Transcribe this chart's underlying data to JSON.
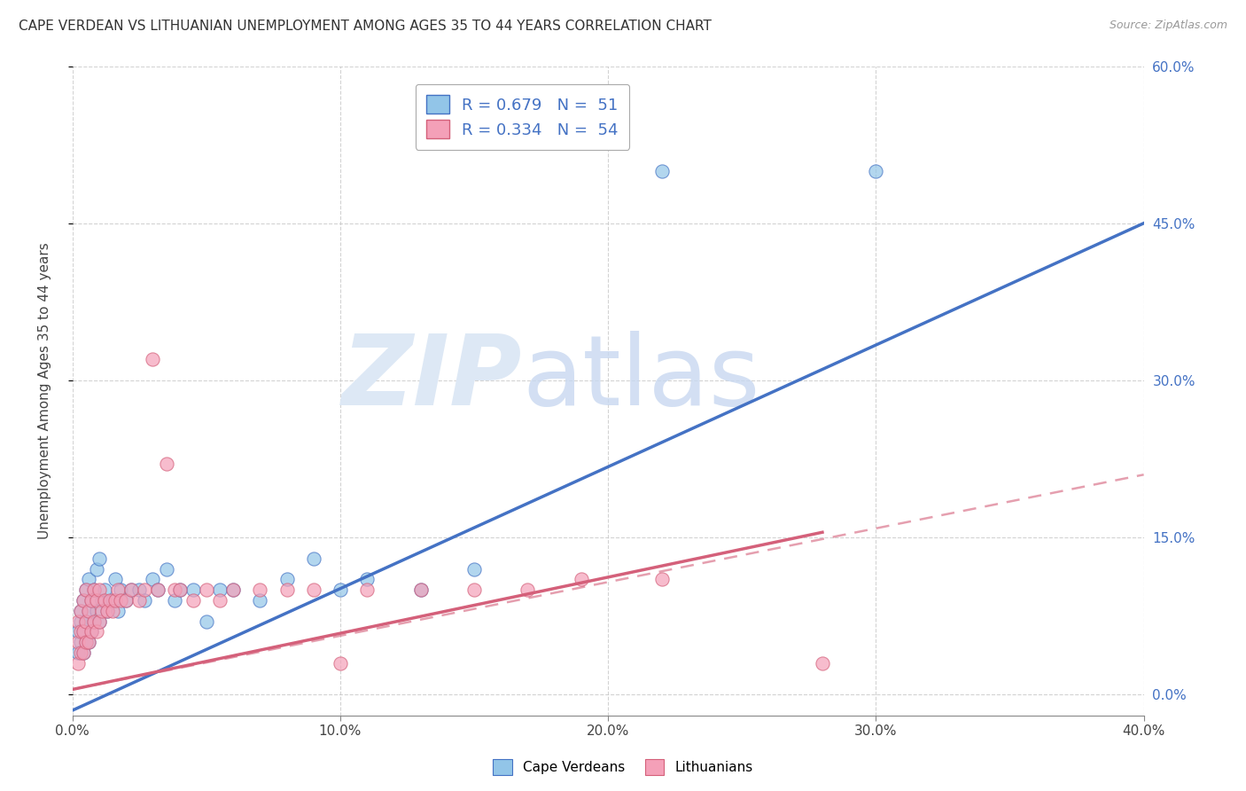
{
  "title": "CAPE VERDEAN VS LITHUANIAN UNEMPLOYMENT AMONG AGES 35 TO 44 YEARS CORRELATION CHART",
  "source": "Source: ZipAtlas.com",
  "ylabel": "Unemployment Among Ages 35 to 44 years",
  "xlim": [
    0.0,
    0.4
  ],
  "ylim": [
    -0.02,
    0.6
  ],
  "ylim_display": [
    0.0,
    0.6
  ],
  "xticks": [
    0.0,
    0.1,
    0.2,
    0.3,
    0.4
  ],
  "yticks": [
    0.0,
    0.15,
    0.3,
    0.45,
    0.6
  ],
  "ytick_labels_right": [
    "0.0%",
    "15.0%",
    "30.0%",
    "45.0%",
    "60.0%"
  ],
  "xtick_labels": [
    "0.0%",
    "10.0%",
    "20.0%",
    "30.0%",
    "40.0%"
  ],
  "grid_color": "#c8c8c8",
  "background_color": "#ffffff",
  "legend_R1": "R = 0.679",
  "legend_N1": "N =  51",
  "legend_R2": "R = 0.334",
  "legend_N2": "N =  54",
  "color_blue": "#92c5e8",
  "color_pink": "#f4a0b8",
  "trendline_blue": "#4472c4",
  "trendline_pink": "#d4607a",
  "label1": "Cape Verdeans",
  "label2": "Lithuanians",
  "cape_verdean_x": [
    0.002,
    0.002,
    0.003,
    0.003,
    0.003,
    0.004,
    0.004,
    0.004,
    0.005,
    0.005,
    0.005,
    0.006,
    0.006,
    0.006,
    0.007,
    0.007,
    0.008,
    0.008,
    0.009,
    0.009,
    0.01,
    0.01,
    0.011,
    0.012,
    0.013,
    0.015,
    0.016,
    0.017,
    0.018,
    0.02,
    0.022,
    0.025,
    0.027,
    0.03,
    0.032,
    0.035,
    0.038,
    0.04,
    0.045,
    0.05,
    0.055,
    0.06,
    0.07,
    0.08,
    0.09,
    0.1,
    0.11,
    0.13,
    0.15,
    0.22,
    0.3
  ],
  "cape_verdean_y": [
    0.04,
    0.06,
    0.05,
    0.07,
    0.08,
    0.04,
    0.06,
    0.09,
    0.05,
    0.07,
    0.1,
    0.05,
    0.08,
    0.11,
    0.06,
    0.09,
    0.07,
    0.1,
    0.08,
    0.12,
    0.07,
    0.13,
    0.09,
    0.1,
    0.08,
    0.09,
    0.11,
    0.08,
    0.1,
    0.09,
    0.1,
    0.1,
    0.09,
    0.11,
    0.1,
    0.12,
    0.09,
    0.1,
    0.1,
    0.07,
    0.1,
    0.1,
    0.09,
    0.11,
    0.13,
    0.1,
    0.11,
    0.1,
    0.12,
    0.5,
    0.5
  ],
  "lithuanian_x": [
    0.002,
    0.002,
    0.002,
    0.003,
    0.003,
    0.003,
    0.004,
    0.004,
    0.004,
    0.005,
    0.005,
    0.005,
    0.006,
    0.006,
    0.007,
    0.007,
    0.008,
    0.008,
    0.009,
    0.009,
    0.01,
    0.01,
    0.011,
    0.012,
    0.013,
    0.014,
    0.015,
    0.016,
    0.017,
    0.018,
    0.02,
    0.022,
    0.025,
    0.027,
    0.03,
    0.032,
    0.035,
    0.038,
    0.04,
    0.045,
    0.05,
    0.055,
    0.06,
    0.07,
    0.08,
    0.09,
    0.1,
    0.11,
    0.13,
    0.15,
    0.17,
    0.19,
    0.22,
    0.28
  ],
  "lithuanian_y": [
    0.03,
    0.05,
    0.07,
    0.04,
    0.06,
    0.08,
    0.04,
    0.06,
    0.09,
    0.05,
    0.07,
    0.1,
    0.05,
    0.08,
    0.06,
    0.09,
    0.07,
    0.1,
    0.06,
    0.09,
    0.07,
    0.1,
    0.08,
    0.09,
    0.08,
    0.09,
    0.08,
    0.09,
    0.1,
    0.09,
    0.09,
    0.1,
    0.09,
    0.1,
    0.32,
    0.1,
    0.22,
    0.1,
    0.1,
    0.09,
    0.1,
    0.09,
    0.1,
    0.1,
    0.1,
    0.1,
    0.03,
    0.1,
    0.1,
    0.1,
    0.1,
    0.11,
    0.11,
    0.03
  ],
  "trend_blue_x0": 0.0,
  "trend_blue_y0": -0.015,
  "trend_blue_x1": 0.4,
  "trend_blue_y1": 0.45,
  "trend_pink_solid_x0": 0.0,
  "trend_pink_solid_y0": 0.005,
  "trend_pink_solid_x1": 0.28,
  "trend_pink_solid_y1": 0.155,
  "trend_pink_dash_x0": 0.0,
  "trend_pink_dash_y0": 0.005,
  "trend_pink_dash_x1": 0.4,
  "trend_pink_dash_y1": 0.21
}
